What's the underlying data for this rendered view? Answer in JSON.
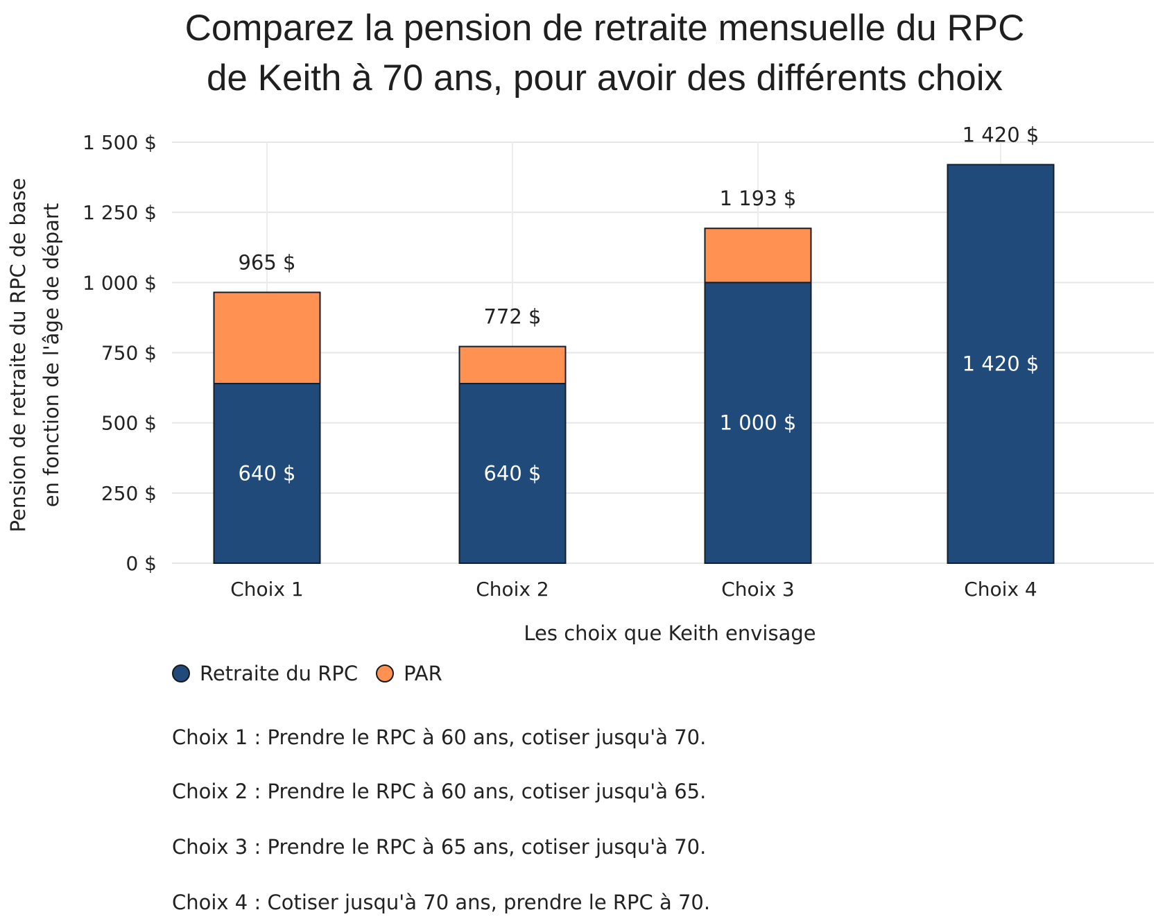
{
  "chart_data": {
    "type": "bar",
    "stacked": true,
    "title": [
      "Comparez la pension de retraite mensuelle du RPC",
      "de Keith à 70 ans, pour avoir des différents choix"
    ],
    "ylabel": [
      "Pension de retraite du RPC de base",
      "en fonction de l'âge de départ"
    ],
    "xlabel": "Les choix que Keith envisage",
    "categories": [
      "Choix 1",
      "Choix 2",
      "Choix 3",
      "Choix 4"
    ],
    "ylim": [
      0,
      1500
    ],
    "yticks": [
      0,
      250,
      500,
      750,
      1000,
      1250,
      1500
    ],
    "ytick_labels": [
      "0 $",
      "250 $",
      "500 $",
      "750 $",
      "1 000 $",
      "1 250 $",
      "1 500 $"
    ],
    "grid": true,
    "series": [
      {
        "name": "Retraite du RPC",
        "color": "#204a7a",
        "values": [
          640,
          640,
          1000,
          1420
        ],
        "labels": [
          "640 $",
          "640 $",
          "1 000 $",
          "1 420 $"
        ]
      },
      {
        "name": "PAR",
        "color": "#ff9152",
        "values": [
          325,
          132,
          193,
          0
        ]
      }
    ],
    "total_labels": [
      "965 $",
      "772 $",
      "1 193 $",
      "1 420 $"
    ],
    "legend": {
      "placement": "bottom-left",
      "items": [
        "Retraite du RPC",
        "PAR"
      ]
    },
    "notes": [
      "Choix 1 : Prendre le RPC à 60 ans, cotiser jusqu'à 70.",
      "Choix 2 : Prendre le RPC à 60 ans, cotiser jusqu'à 65.",
      "Choix 3 : Prendre le RPC à 65 ans, cotiser jusqu'à 70.",
      "Choix 4 : Cotiser jusqu'à 70 ans, prendre le RPC à 70."
    ]
  }
}
